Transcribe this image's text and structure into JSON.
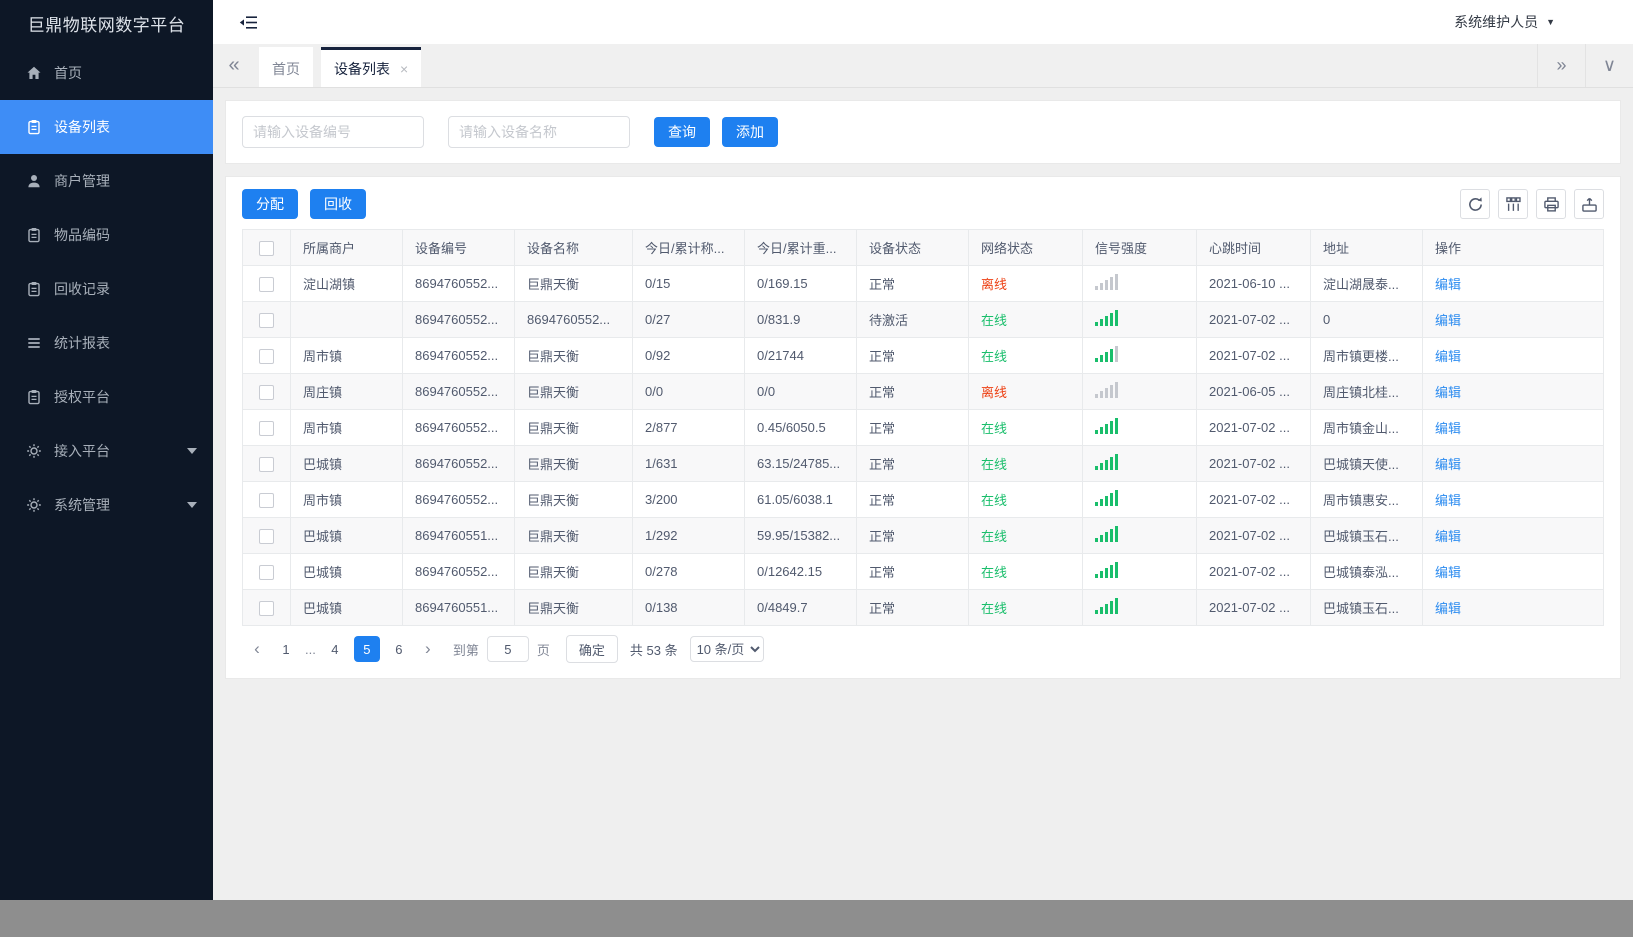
{
  "app": {
    "title": "巨鼎物联网数字平台",
    "user": "系统维护人员"
  },
  "colors": {
    "accent": "#1e80f0",
    "sidebar_bg": "#0d1726",
    "sidebar_active": "#3e8df6",
    "online": "#19be6b",
    "offline": "#ed4014",
    "link": "#2d8cf0",
    "signal_off": "#c5c8ce"
  },
  "icons": {
    "tabs_prev": "«",
    "tabs_next": "»",
    "tabs_menu": "∨",
    "page_prev": "‹",
    "page_next": "›",
    "user_caret": "▼",
    "tab_close": "×"
  },
  "sidebar": {
    "items": [
      {
        "key": "home",
        "label": "首页",
        "icon": "home-icon",
        "active": false,
        "caret": false
      },
      {
        "key": "device-list",
        "label": "设备列表",
        "icon": "clipboard-icon",
        "active": true,
        "caret": false
      },
      {
        "key": "merchants",
        "label": "商户管理",
        "icon": "user-icon",
        "active": false,
        "caret": false
      },
      {
        "key": "item-codes",
        "label": "物品编码",
        "icon": "clipboard-icon",
        "active": false,
        "caret": false
      },
      {
        "key": "recycle",
        "label": "回收记录",
        "icon": "clipboard-icon",
        "active": false,
        "caret": false
      },
      {
        "key": "reports",
        "label": "统计报表",
        "icon": "list-icon",
        "active": false,
        "caret": false
      },
      {
        "key": "auth",
        "label": "授权平台",
        "icon": "clipboard-icon",
        "active": false,
        "caret": false
      },
      {
        "key": "access",
        "label": "接入平台",
        "icon": "gear-icon",
        "active": false,
        "caret": true
      },
      {
        "key": "system",
        "label": "系统管理",
        "icon": "gear-icon",
        "active": false,
        "caret": true
      }
    ]
  },
  "tabs": {
    "items": [
      {
        "key": "home",
        "label": "首页",
        "active": false,
        "closable": false
      },
      {
        "key": "device-list",
        "label": "设备列表",
        "active": true,
        "closable": true
      }
    ]
  },
  "search": {
    "device_no_placeholder": "请输入设备编号",
    "device_name_placeholder": "请输入设备名称",
    "query_label": "查询",
    "add_label": "添加"
  },
  "toolbar": {
    "assign_label": "分配",
    "recycle_label": "回收"
  },
  "table": {
    "columns": [
      "所属商户",
      "设备编号",
      "设备名称",
      "今日/累计称...",
      "今日/累计重...",
      "设备状态",
      "网络状态",
      "信号强度",
      "心跳时间",
      "地址",
      "操作"
    ],
    "rows": [
      {
        "merchant": "淀山湖镇",
        "device_no": "8694760552...",
        "device_name": "巨鼎天衡",
        "today_count": "0/15",
        "today_weight": "0/169.15",
        "device_status": "正常",
        "network_status": "离线",
        "network_state": "offline",
        "signal_bars": 0,
        "heartbeat": "2021-06-10 ...",
        "address": "淀山湖晟泰...",
        "action": "编辑"
      },
      {
        "merchant": "",
        "device_no": "8694760552...",
        "device_name": "8694760552...",
        "today_count": "0/27",
        "today_weight": "0/831.9",
        "device_status": "待激活",
        "network_status": "在线",
        "network_state": "online",
        "signal_bars": 5,
        "heartbeat": "2021-07-02 ...",
        "address": "0",
        "action": "编辑"
      },
      {
        "merchant": "周市镇",
        "device_no": "8694760552...",
        "device_name": "巨鼎天衡",
        "today_count": "0/92",
        "today_weight": "0/21744",
        "device_status": "正常",
        "network_status": "在线",
        "network_state": "online",
        "signal_bars": 4,
        "heartbeat": "2021-07-02 ...",
        "address": "周市镇更楼...",
        "action": "编辑"
      },
      {
        "merchant": "周庄镇",
        "device_no": "8694760552...",
        "device_name": "巨鼎天衡",
        "today_count": "0/0",
        "today_weight": "0/0",
        "device_status": "正常",
        "network_status": "离线",
        "network_state": "offline",
        "signal_bars": 0,
        "heartbeat": "2021-06-05 ...",
        "address": "周庄镇北桂...",
        "action": "编辑"
      },
      {
        "merchant": "周市镇",
        "device_no": "8694760552...",
        "device_name": "巨鼎天衡",
        "today_count": "2/877",
        "today_weight": "0.45/6050.5",
        "device_status": "正常",
        "network_status": "在线",
        "network_state": "online",
        "signal_bars": 5,
        "heartbeat": "2021-07-02 ...",
        "address": "周市镇金山...",
        "action": "编辑"
      },
      {
        "merchant": "巴城镇",
        "device_no": "8694760552...",
        "device_name": "巨鼎天衡",
        "today_count": "1/631",
        "today_weight": "63.15/24785...",
        "device_status": "正常",
        "network_status": "在线",
        "network_state": "online",
        "signal_bars": 5,
        "heartbeat": "2021-07-02 ...",
        "address": "巴城镇天使...",
        "action": "编辑"
      },
      {
        "merchant": "周市镇",
        "device_no": "8694760552...",
        "device_name": "巨鼎天衡",
        "today_count": "3/200",
        "today_weight": "61.05/6038.1",
        "device_status": "正常",
        "network_status": "在线",
        "network_state": "online",
        "signal_bars": 5,
        "heartbeat": "2021-07-02 ...",
        "address": "周市镇惠安...",
        "action": "编辑"
      },
      {
        "merchant": "巴城镇",
        "device_no": "8694760551...",
        "device_name": "巨鼎天衡",
        "today_count": "1/292",
        "today_weight": "59.95/15382...",
        "device_status": "正常",
        "network_status": "在线",
        "network_state": "online",
        "signal_bars": 5,
        "heartbeat": "2021-07-02 ...",
        "address": "巴城镇玉石...",
        "action": "编辑"
      },
      {
        "merchant": "巴城镇",
        "device_no": "8694760552...",
        "device_name": "巨鼎天衡",
        "today_count": "0/278",
        "today_weight": "0/12642.15",
        "device_status": "正常",
        "network_status": "在线",
        "network_state": "online",
        "signal_bars": 5,
        "heartbeat": "2021-07-02 ...",
        "address": "巴城镇泰泓...",
        "action": "编辑"
      },
      {
        "merchant": "巴城镇",
        "device_no": "8694760551...",
        "device_name": "巨鼎天衡",
        "today_count": "0/138",
        "today_weight": "0/4849.7",
        "device_status": "正常",
        "network_status": "在线",
        "network_state": "online",
        "signal_bars": 5,
        "heartbeat": "2021-07-02 ...",
        "address": "巴城镇玉石...",
        "action": "编辑"
      }
    ]
  },
  "pagination": {
    "pages": [
      "1",
      "...",
      "4",
      "5",
      "6"
    ],
    "active_page": "5",
    "jump_prefix": "到第",
    "jump_value": "5",
    "jump_suffix": "页",
    "confirm_label": "确定",
    "total_label": "共 53 条",
    "page_size": "10 条/页"
  }
}
